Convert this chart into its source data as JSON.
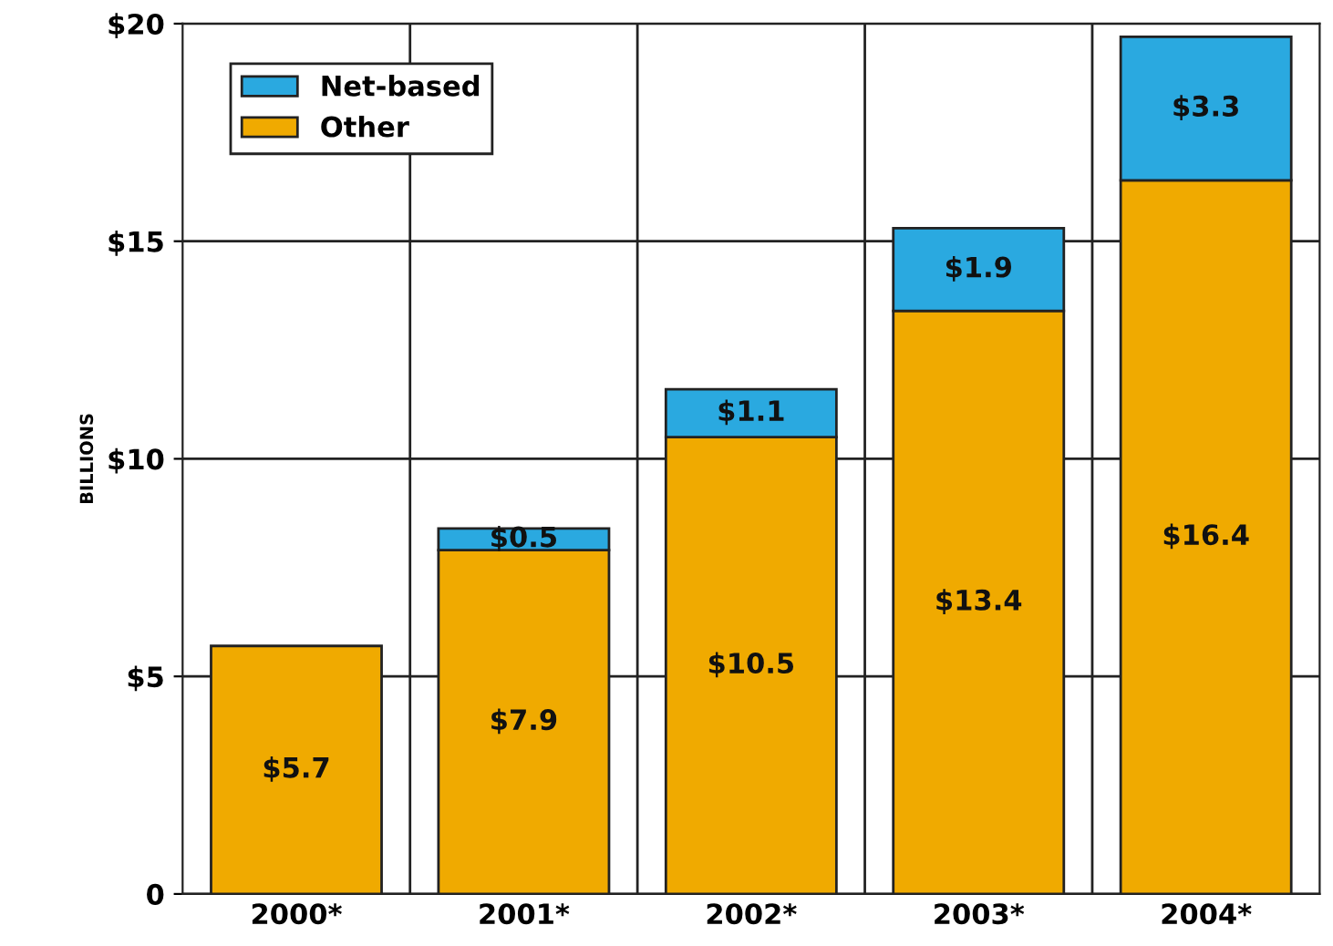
{
  "chart_data": {
    "type": "bar",
    "stacked": true,
    "ylabel": "BILLIONS",
    "categories": [
      "2000*",
      "2001*",
      "2002*",
      "2003*",
      "2004*"
    ],
    "series": [
      {
        "name": "Other",
        "color": "#f0aa00",
        "values": [
          5.7,
          7.9,
          10.5,
          13.4,
          16.4
        ],
        "value_labels": [
          "$5.7",
          "$7.9",
          "$10.5",
          "$13.4",
          "$16.4"
        ]
      },
      {
        "name": "Net-based",
        "color": "#2aa9e0",
        "values": [
          null,
          0.5,
          1.1,
          1.9,
          3.3
        ],
        "value_labels": [
          null,
          "$0.5",
          "$1.1",
          "$1.9",
          "$3.3"
        ]
      }
    ],
    "ylim": [
      0,
      20
    ],
    "yticks": [
      0,
      {
        "value": 5,
        "label": "$5"
      },
      {
        "value": 10,
        "label": "$10"
      },
      {
        "value": 15,
        "label": "$15"
      },
      {
        "value": 20,
        "label": "$20"
      }
    ],
    "grid": true,
    "legend": "top left"
  }
}
